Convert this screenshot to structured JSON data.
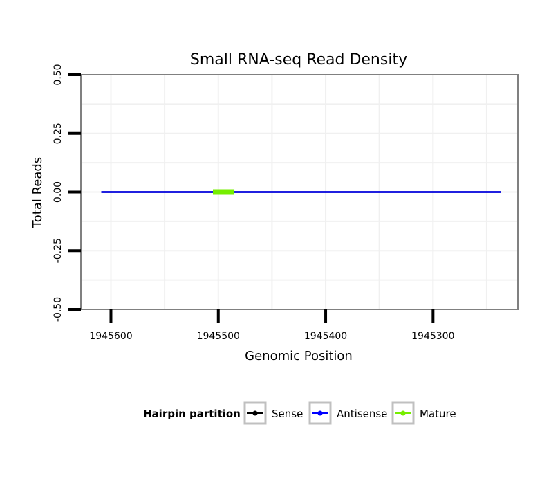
{
  "chart_data": {
    "type": "line",
    "title": "Small RNA-seq Read Density",
    "xlabel": "Genomic Position",
    "ylabel": "Total Reads",
    "x_reversed": true,
    "xlim": [
      1945628,
      1945221
    ],
    "ylim": [
      -0.5,
      0.5
    ],
    "x_ticks": [
      1945600,
      1945500,
      1945400,
      1945300
    ],
    "x_tick_labels": [
      "1945600",
      "1945500",
      "1945400",
      "1945300"
    ],
    "y_ticks": [
      0.5,
      0.25,
      0.0,
      -0.25,
      -0.5
    ],
    "y_tick_labels": [
      "0.50",
      "0.25",
      "0.00",
      "-0.25",
      "-0.50"
    ],
    "grid": true,
    "legend_position": "bottom",
    "series": [
      {
        "name": "Sense",
        "color": "#000000",
        "x": [
          1945609,
          1945237
        ],
        "y": [
          0,
          0
        ]
      },
      {
        "name": "Antisense",
        "color": "#0000ff",
        "x": [
          1945609,
          1945237
        ],
        "y": [
          0,
          0
        ]
      },
      {
        "name": "Mature",
        "color": "#76ee00",
        "x": [
          1945505,
          1945485
        ],
        "y": [
          0,
          0
        ]
      }
    ]
  },
  "legend": {
    "title": "Hairpin partition",
    "items": [
      {
        "label": "Sense",
        "color": "#000000"
      },
      {
        "label": "Antisense",
        "color": "#0000ff"
      },
      {
        "label": "Mature",
        "color": "#76ee00"
      }
    ]
  }
}
